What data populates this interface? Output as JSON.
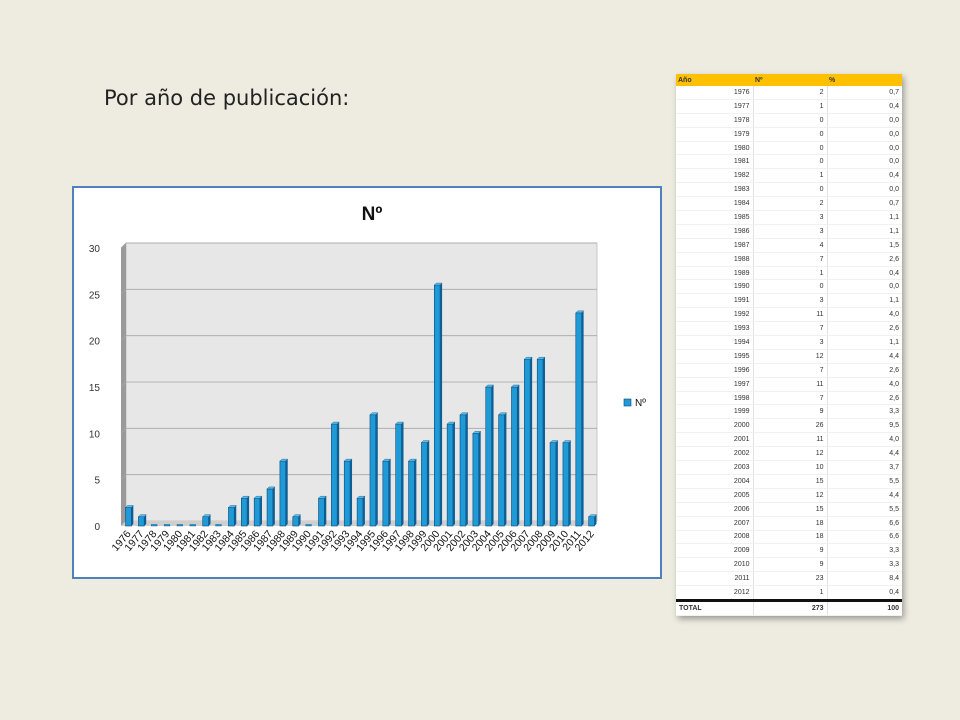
{
  "slide": {
    "title": "Por año de publicación:"
  },
  "chart_data": {
    "type": "bar",
    "title": "Nº",
    "xlabel": "",
    "ylabel": "",
    "ylim": [
      0,
      30
    ],
    "yticks": [
      "0",
      "5",
      "10",
      "15",
      "20",
      "25",
      "30"
    ],
    "legend_position": "right",
    "grid": true,
    "bar_color": "#1f9ad6",
    "categories": [
      "1976",
      "1977",
      "1978",
      "1979",
      "1980",
      "1981",
      "1982",
      "1983",
      "1984",
      "1985",
      "1986",
      "1987",
      "1988",
      "1989",
      "1990",
      "1991",
      "1992",
      "1993",
      "1994",
      "1995",
      "1996",
      "1997",
      "1998",
      "1999",
      "2000",
      "2001",
      "2002",
      "2003",
      "2004",
      "2005",
      "2006",
      "2007",
      "2008",
      "2009",
      "2010",
      "2011",
      "2012"
    ],
    "series": [
      {
        "name": "Nº",
        "values": [
          2,
          1,
          0,
          0,
          0,
          0,
          1,
          0,
          2,
          3,
          3,
          4,
          7,
          1,
          0,
          3,
          11,
          7,
          3,
          12,
          7,
          11,
          7,
          9,
          26,
          11,
          12,
          10,
          15,
          12,
          15,
          18,
          18,
          9,
          9,
          23,
          1
        ]
      }
    ]
  },
  "table": {
    "headers": [
      "Año",
      "Nº",
      "%"
    ],
    "rows": [
      [
        "1976",
        "2",
        "0,7"
      ],
      [
        "1977",
        "1",
        "0,4"
      ],
      [
        "1978",
        "0",
        "0,0"
      ],
      [
        "1979",
        "0",
        "0,0"
      ],
      [
        "1980",
        "0",
        "0,0"
      ],
      [
        "1981",
        "0",
        "0,0"
      ],
      [
        "1982",
        "1",
        "0,4"
      ],
      [
        "1983",
        "0",
        "0,0"
      ],
      [
        "1984",
        "2",
        "0,7"
      ],
      [
        "1985",
        "3",
        "1,1"
      ],
      [
        "1986",
        "3",
        "1,1"
      ],
      [
        "1987",
        "4",
        "1,5"
      ],
      [
        "1988",
        "7",
        "2,6"
      ],
      [
        "1989",
        "1",
        "0,4"
      ],
      [
        "1990",
        "0",
        "0,0"
      ],
      [
        "1991",
        "3",
        "1,1"
      ],
      [
        "1992",
        "11",
        "4,0"
      ],
      [
        "1993",
        "7",
        "2,6"
      ],
      [
        "1994",
        "3",
        "1,1"
      ],
      [
        "1995",
        "12",
        "4,4"
      ],
      [
        "1996",
        "7",
        "2,6"
      ],
      [
        "1997",
        "11",
        "4,0"
      ],
      [
        "1998",
        "7",
        "2,6"
      ],
      [
        "1999",
        "9",
        "3,3"
      ],
      [
        "2000",
        "26",
        "9,5"
      ],
      [
        "2001",
        "11",
        "4,0"
      ],
      [
        "2002",
        "12",
        "4,4"
      ],
      [
        "2003",
        "10",
        "3,7"
      ],
      [
        "2004",
        "15",
        "5,5"
      ],
      [
        "2005",
        "12",
        "4,4"
      ],
      [
        "2006",
        "15",
        "5,5"
      ],
      [
        "2007",
        "18",
        "6,6"
      ],
      [
        "2008",
        "18",
        "6,6"
      ],
      [
        "2009",
        "9",
        "3,3"
      ],
      [
        "2010",
        "9",
        "3,3"
      ],
      [
        "2011",
        "23",
        "8,4"
      ],
      [
        "2012",
        "1",
        "0,4"
      ]
    ],
    "total": [
      "TOTAL",
      "273",
      "100"
    ]
  }
}
